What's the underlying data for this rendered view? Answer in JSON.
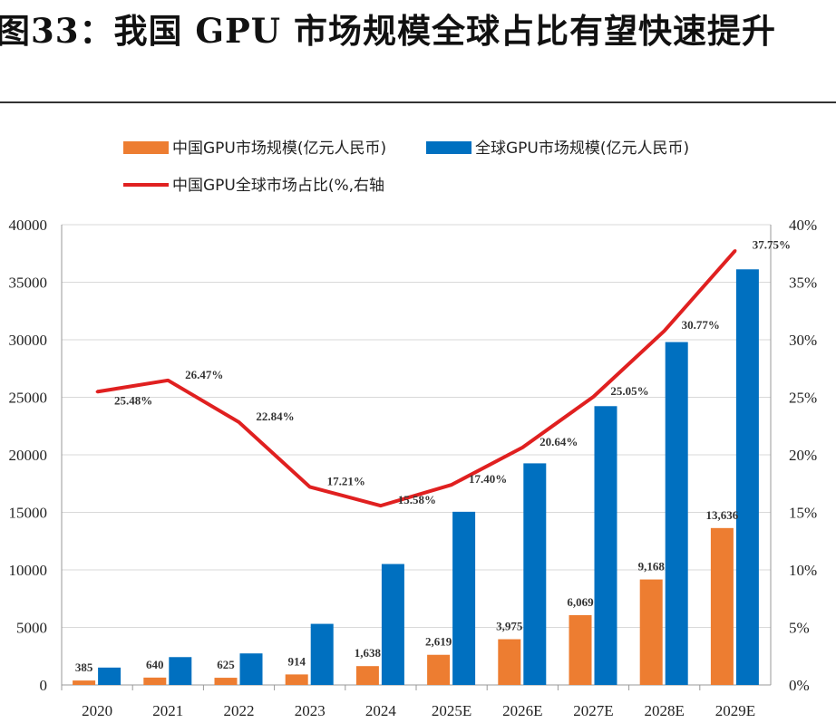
{
  "title": "图33：我国 GPU 市场规模全球占比有望快速提升",
  "chart_data": {
    "type": "bar",
    "categories": [
      "2020",
      "2021",
      "2022",
      "2023",
      "2024",
      "2025E",
      "2026E",
      "2027E",
      "2028E",
      "2029E"
    ],
    "series": [
      {
        "name": "中国GPU市场规模(亿元人民币)",
        "type": "bar",
        "axis": "left",
        "color": "#ed7d31",
        "values": [
          385,
          640,
          625,
          914,
          1638,
          2619,
          3975,
          6069,
          9168,
          13636
        ],
        "labels": [
          "385",
          "640",
          "625",
          "914",
          "1,638",
          "2,619",
          "3,975",
          "6,069",
          "9,168",
          "13,636"
        ]
      },
      {
        "name": "全球GPU市场规模(亿元人民币)",
        "type": "bar",
        "axis": "left",
        "color": "#0070c0",
        "values": [
          1510,
          2420,
          2740,
          5310,
          10510,
          15050,
          19260,
          24230,
          29800,
          36120
        ]
      },
      {
        "name": "中国GPU全球市场占比(%,右轴",
        "type": "line",
        "axis": "right",
        "color": "#e02020",
        "values": [
          25.48,
          26.47,
          22.84,
          17.21,
          15.58,
          17.4,
          20.64,
          25.05,
          30.77,
          37.75
        ],
        "labels": [
          "25.48%",
          "26.47%",
          "22.84%",
          "17.21%",
          "15.58%",
          "17.40%",
          "20.64%",
          "25.05%",
          "30.77%",
          "37.75%"
        ]
      }
    ],
    "y_left": {
      "min": 0,
      "max": 40000,
      "ticks": [
        "0",
        "5000",
        "10000",
        "15000",
        "20000",
        "25000",
        "30000",
        "35000",
        "40000"
      ]
    },
    "y_right": {
      "min": 0,
      "max": 40,
      "ticks": [
        "0%",
        "5%",
        "10%",
        "15%",
        "20%",
        "25%",
        "30%",
        "35%",
        "40%"
      ]
    },
    "legend_position": "top",
    "grid": true
  }
}
